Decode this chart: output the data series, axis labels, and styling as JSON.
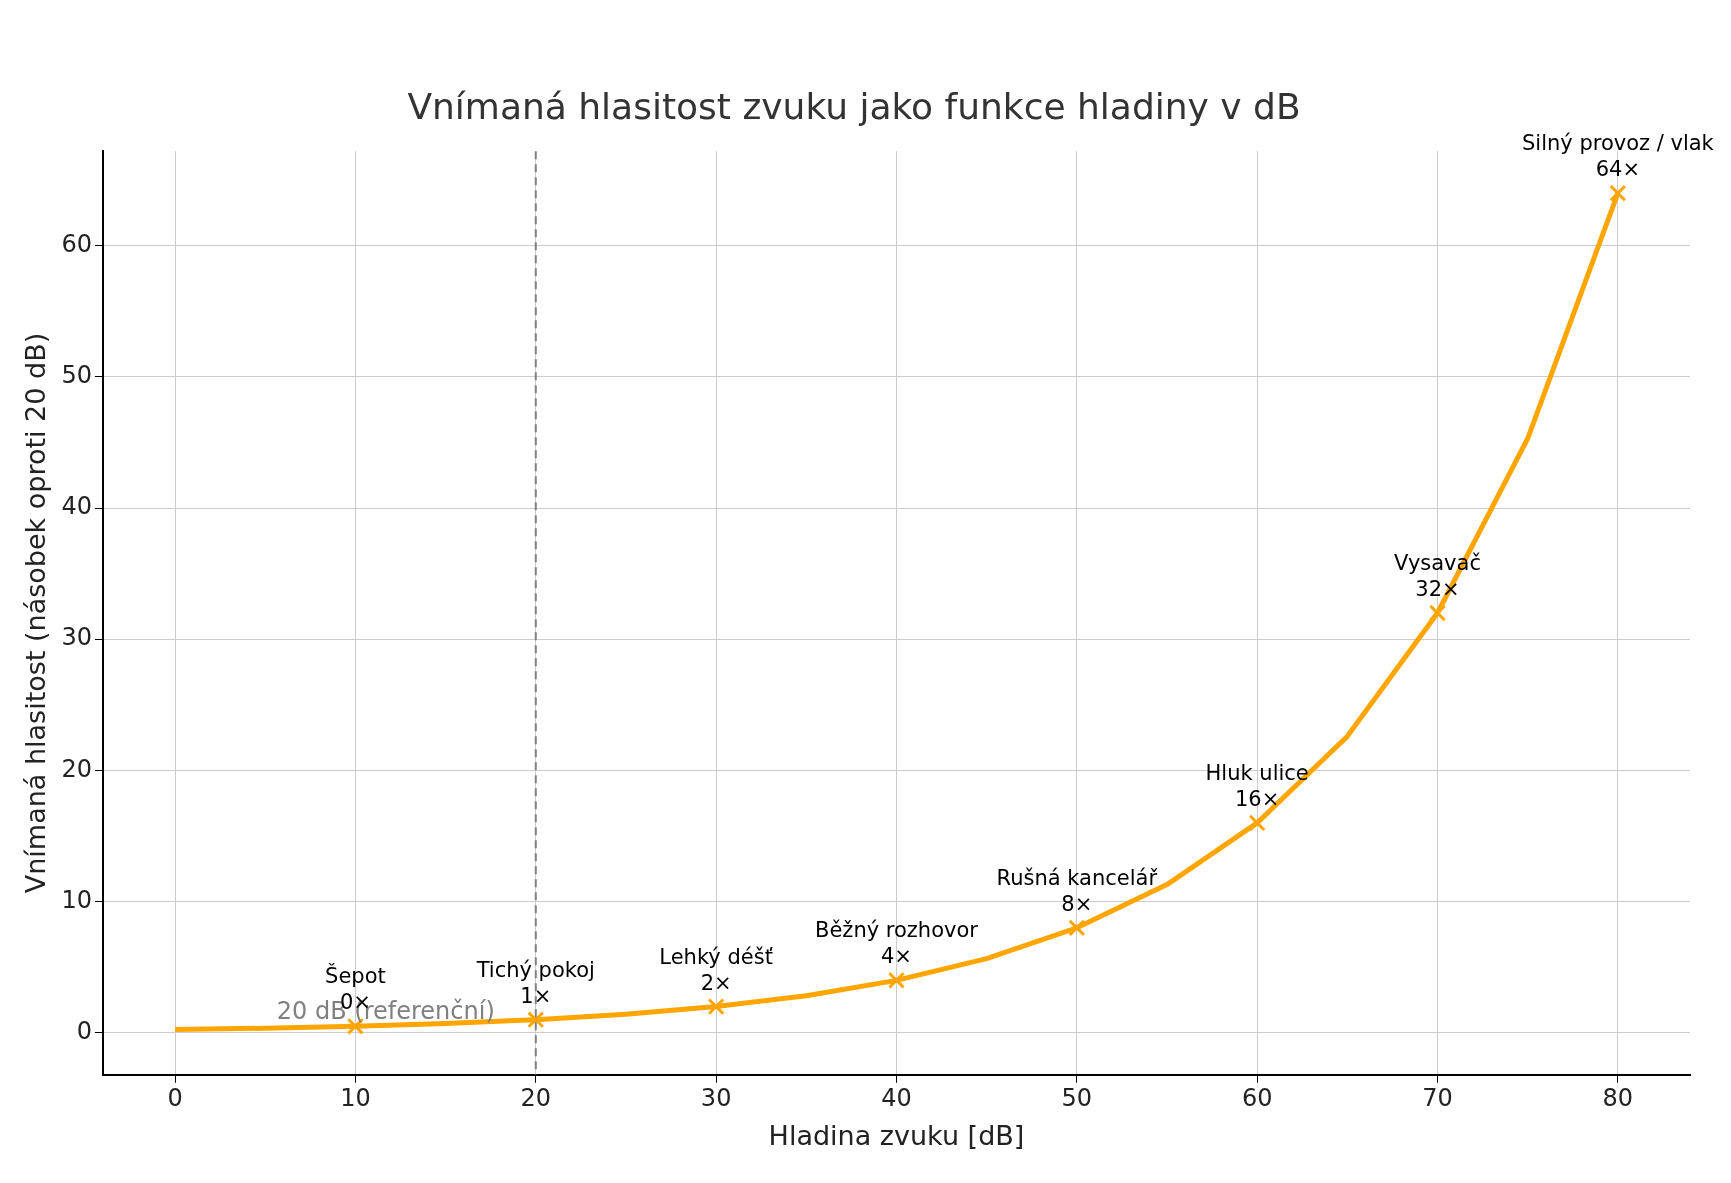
{
  "chart_data": {
    "type": "line",
    "title": "Vnímaná hlasitost zvuku jako funkce hladiny v dB",
    "xlabel": "Hladina zvuku [dB]",
    "ylabel": "Vnímaná hlasitost (násobek oproti 20 dB)",
    "xlim": [
      -4,
      84
    ],
    "xticks": [
      0,
      10,
      20,
      30,
      40,
      50,
      60,
      70,
      80
    ],
    "ylim": [
      -3.2,
      67.2
    ],
    "yticks": [
      0,
      10,
      20,
      30,
      40,
      50,
      60
    ],
    "grid": true,
    "legend": false,
    "line_style": "solid",
    "series": [
      {
        "color": "#ffa500",
        "marker": "none",
        "x": [
          0,
          5,
          10,
          15,
          20,
          25,
          30,
          35,
          40,
          45,
          50,
          55,
          60,
          65,
          70,
          75,
          80
        ],
        "values": [
          0.25,
          0.35,
          0.5,
          0.71,
          1,
          1.41,
          2,
          2.83,
          4,
          5.66,
          8,
          11.3,
          16,
          22.6,
          32,
          45.3,
          64
        ]
      },
      {
        "type": "scatter",
        "color": "#ffa500",
        "marker": "cross",
        "x": [
          10,
          20,
          30,
          40,
          50,
          60,
          70,
          80
        ],
        "values": [
          0.5,
          1,
          2,
          4,
          8,
          16,
          32,
          64
        ]
      }
    ],
    "ref_lines": [
      {
        "axis": "x",
        "value": 20,
        "label": "20 dB (referenční)",
        "color": "#808080",
        "line_style": "dashed"
      }
    ],
    "annotations": [
      {
        "text": "Šepot\n0×",
        "x": 10,
        "y": 0.5
      },
      {
        "text": "Tichý pokoj\n1×",
        "x": 20,
        "y": 1
      },
      {
        "text": "Lehký déšť\n2×",
        "x": 30,
        "y": 2
      },
      {
        "text": "Běžný rozhovor\n4×",
        "x": 40,
        "y": 4
      },
      {
        "text": "Rušná kancelář\n8×",
        "x": 50,
        "y": 8
      },
      {
        "text": "Hluk ulice\n16×",
        "x": 60,
        "y": 16
      },
      {
        "text": "Vysavač\n32×",
        "x": 70,
        "y": 32
      },
      {
        "text": "Silný provoz / vlak\n64×",
        "x": 80,
        "y": 64
      }
    ]
  }
}
